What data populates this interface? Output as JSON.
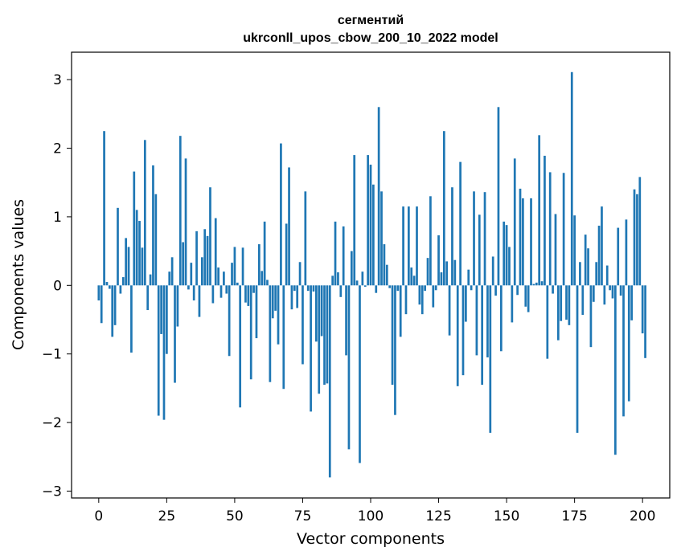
{
  "chart_data": {
    "type": "bar",
    "title_line1": "сегментий",
    "title_line2": "ukrconll_upos_cbow_200_10_2022 model",
    "xlabel": "Vector components",
    "ylabel": "Components values",
    "xlim": [
      -10,
      210
    ],
    "ylim": [
      -3.1,
      3.4
    ],
    "xticks": [
      0,
      25,
      50,
      75,
      100,
      125,
      150,
      175,
      200
    ],
    "yticks": [
      -3,
      -2,
      -1,
      0,
      1,
      2,
      3
    ],
    "ytick_labels": [
      "−3",
      "−2",
      "−1",
      "0",
      "1",
      "2",
      "3"
    ],
    "bar_color": "#1f77b4",
    "values": [
      -0.22,
      -0.55,
      2.25,
      0.05,
      -0.05,
      -0.75,
      -0.58,
      1.13,
      -0.12,
      0.12,
      0.69,
      0.56,
      -0.98,
      1.66,
      1.1,
      0.94,
      0.55,
      2.12,
      -0.36,
      0.16,
      1.75,
      1.33,
      -1.9,
      -0.71,
      -1.96,
      -1.0,
      0.2,
      0.41,
      -1.42,
      -0.6,
      2.18,
      0.63,
      1.85,
      -0.06,
      0.33,
      -0.22,
      0.79,
      -0.46,
      0.41,
      0.82,
      0.72,
      1.43,
      -0.26,
      0.98,
      0.26,
      -0.18,
      0.2,
      -0.12,
      -1.03,
      0.33,
      0.56,
      0.04,
      -1.78,
      0.55,
      -0.25,
      -0.3,
      -1.37,
      -0.11,
      -0.77,
      0.6,
      0.21,
      0.93,
      0.08,
      -1.41,
      -0.48,
      -0.37,
      -0.86,
      2.07,
      -1.51,
      0.9,
      1.72,
      -0.35,
      -0.08,
      -0.33,
      0.34,
      -1.15,
      1.37,
      -0.08,
      -1.84,
      -0.09,
      -0.82,
      -1.58,
      -0.74,
      -1.45,
      -1.43,
      -2.8,
      0.14,
      0.93,
      0.19,
      -0.17,
      0.86,
      -1.02,
      -2.39,
      0.5,
      1.9,
      0.07,
      -2.59,
      0.2,
      -0.02,
      1.9,
      1.76,
      1.47,
      -0.11,
      2.6,
      1.37,
      0.6,
      0.3,
      -0.04,
      -1.45,
      -1.89,
      -0.08,
      -0.75,
      1.15,
      -0.42,
      1.15,
      0.26,
      0.14,
      1.15,
      -0.28,
      -0.42,
      -0.08,
      0.4,
      1.3,
      -0.32,
      -0.07,
      0.73,
      0.19,
      2.25,
      0.35,
      -0.73,
      1.43,
      0.37,
      -1.47,
      1.8,
      -1.31,
      -0.53,
      0.23,
      -0.07,
      1.37,
      -1.02,
      1.03,
      -1.45,
      1.36,
      -1.05,
      -2.15,
      0.42,
      -0.15,
      2.6,
      -0.96,
      0.93,
      0.88,
      0.56,
      -0.54,
      1.85,
      -0.14,
      1.41,
      1.27,
      -0.31,
      -0.39,
      1.27,
      0.02,
      0.04,
      2.19,
      0.06,
      1.89,
      -1.07,
      1.65,
      -0.12,
      1.04,
      -0.8,
      -0.52,
      1.64,
      -0.5,
      -0.58,
      3.11,
      1.02,
      -2.15,
      0.34,
      -0.43,
      0.74,
      0.54,
      -0.9,
      -0.24,
      0.34,
      0.87,
      1.15,
      -0.28,
      0.29,
      -0.07,
      -0.19,
      -2.47,
      0.84,
      -0.15,
      -1.91,
      0.96,
      -1.69,
      -0.51,
      1.4,
      1.33,
      1.58,
      -0.7,
      -1.06
    ]
  }
}
